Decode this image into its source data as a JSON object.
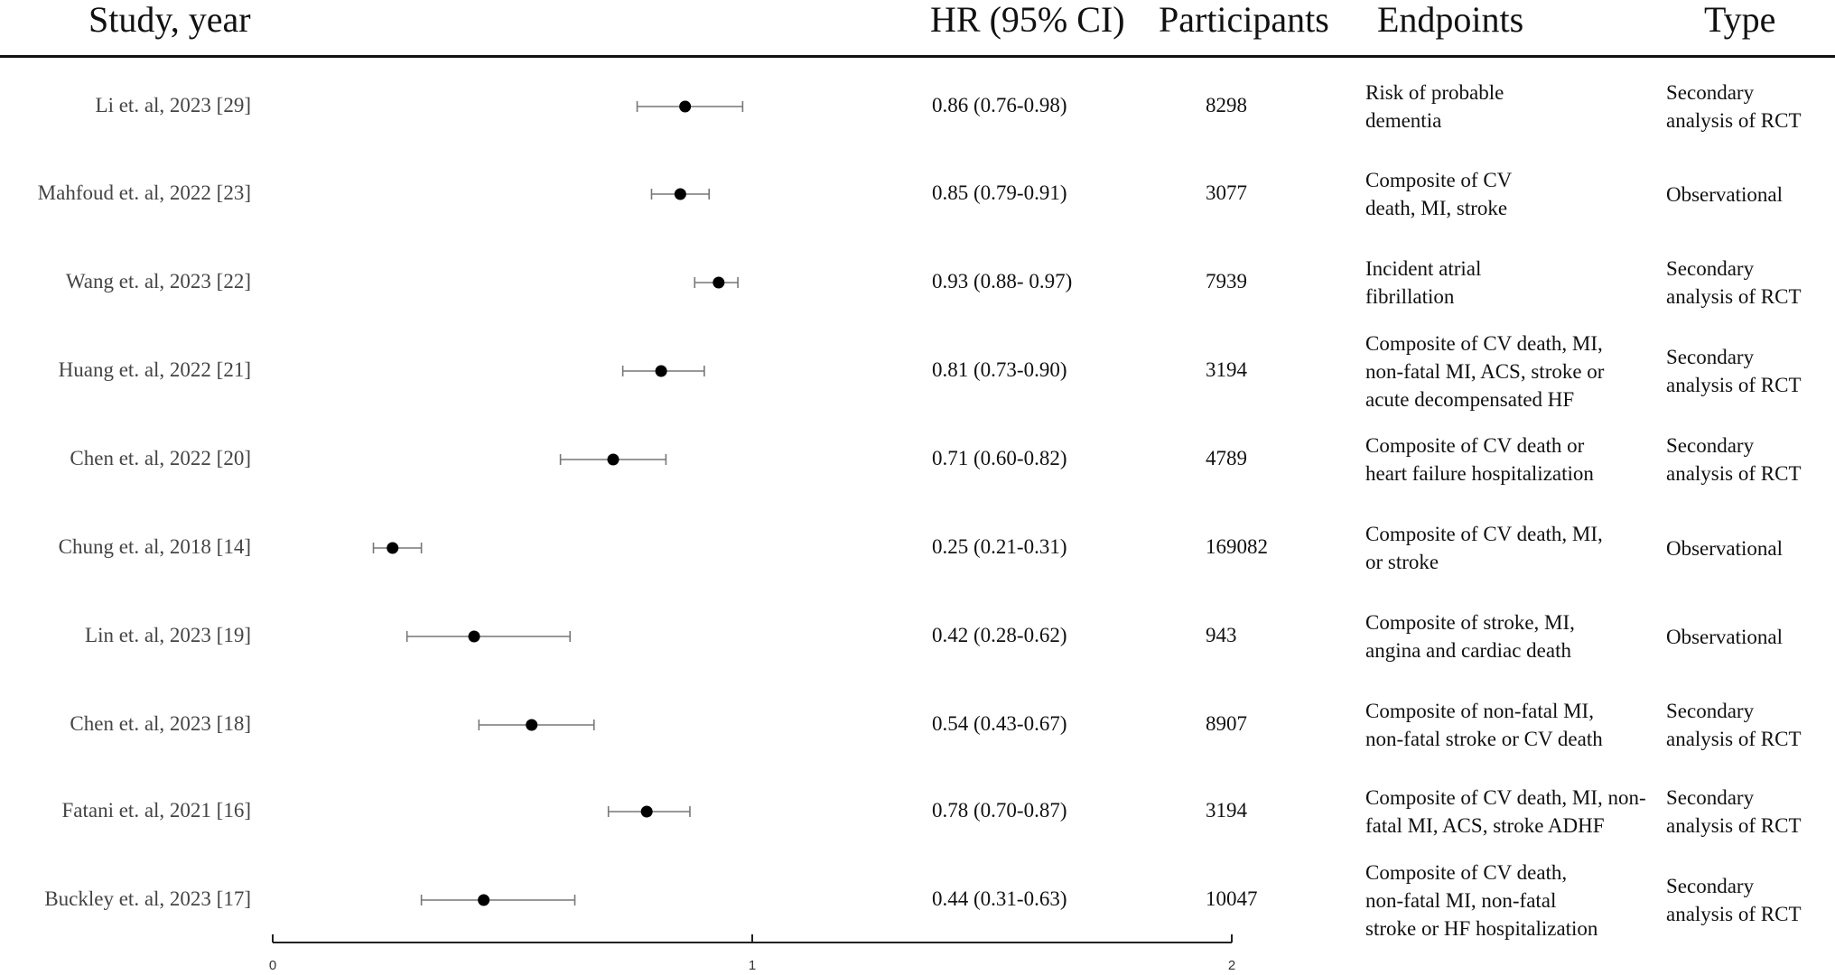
{
  "headers": {
    "study": "Study, year",
    "hr": "HR (95% CI)",
    "participants": "Participants",
    "endpoints": "Endpoints",
    "type": "Type"
  },
  "chart_data": {
    "type": "forest",
    "xlim": [
      0,
      2
    ],
    "xticks": [
      "0",
      "1",
      "2"
    ],
    "studies": [
      {
        "label": "Li et. al, 2023 [29]",
        "hr": 0.86,
        "lo": 0.76,
        "hi": 0.98,
        "hr_text": "0.86 (0.76-0.98)",
        "participants": "8298",
        "endpoint": [
          "Risk of probable",
          "dementia"
        ],
        "type": [
          "Secondary",
          "analysis of RCT"
        ]
      },
      {
        "label": "Mahfoud et. al, 2022 [23]",
        "hr": 0.85,
        "lo": 0.79,
        "hi": 0.91,
        "hr_text": "0.85 (0.79-0.91)",
        "participants": "3077",
        "endpoint": [
          "Composite of CV",
          "death, MI, stroke"
        ],
        "type": [
          "Observational"
        ]
      },
      {
        "label": "Wang et. al, 2023 [22]",
        "hr": 0.93,
        "lo": 0.88,
        "hi": 0.97,
        "hr_text": "0.93 (0.88- 0.97)",
        "participants": "7939",
        "endpoint": [
          "Incident atrial",
          "fibrillation"
        ],
        "type": [
          "Secondary",
          "analysis of RCT"
        ]
      },
      {
        "label": "Huang et. al, 2022 [21]",
        "hr": 0.81,
        "lo": 0.73,
        "hi": 0.9,
        "hr_text": "0.81 (0.73-0.90)",
        "participants": "3194",
        "endpoint": [
          "Composite of CV death, MI,",
          "non-fatal MI, ACS, stroke or",
          "acute decompensated HF"
        ],
        "type": [
          "Secondary",
          "analysis of RCT"
        ]
      },
      {
        "label": "Chen et. al, 2022 [20]",
        "hr": 0.71,
        "lo": 0.6,
        "hi": 0.82,
        "hr_text": "0.71 (0.60-0.82)",
        "participants": "4789",
        "endpoint": [
          "Composite of CV death or",
          "heart failure hospitalization"
        ],
        "type": [
          "Secondary",
          "analysis of RCT"
        ]
      },
      {
        "label": "Chung et. al, 2018 [14]",
        "hr": 0.25,
        "lo": 0.21,
        "hi": 0.31,
        "hr_text": "0.25 (0.21-0.31)",
        "participants": "169082",
        "endpoint": [
          "Composite of CV death, MI,",
          "or stroke"
        ],
        "type": [
          "Observational"
        ]
      },
      {
        "label": "Lin et. al, 2023 [19]",
        "hr": 0.42,
        "lo": 0.28,
        "hi": 0.62,
        "hr_text": "0.42 (0.28-0.62)",
        "participants": "943",
        "endpoint": [
          "Composite of stroke, MI,",
          "angina and cardiac death"
        ],
        "type": [
          "Observational"
        ]
      },
      {
        "label": "Chen et. al, 2023 [18]",
        "hr": 0.54,
        "lo": 0.43,
        "hi": 0.67,
        "hr_text": "0.54 (0.43-0.67)",
        "participants": "8907",
        "endpoint": [
          "Composite of non-fatal MI,",
          "non-fatal stroke or CV death"
        ],
        "type": [
          "Secondary",
          "analysis of RCT"
        ]
      },
      {
        "label": "Fatani et. al, 2021 [16]",
        "hr": 0.78,
        "lo": 0.7,
        "hi": 0.87,
        "hr_text": "0.78 (0.70-0.87)",
        "participants": "3194",
        "endpoint": [
          "Composite of CV death, MI, non-",
          "fatal MI, ACS, stroke ADHF"
        ],
        "type": [
          "Secondary",
          "analysis of RCT"
        ]
      },
      {
        "label": "Buckley et. al, 2023 [17]",
        "hr": 0.44,
        "lo": 0.31,
        "hi": 0.63,
        "hr_text": "0.44 (0.31-0.63)",
        "participants": "10047",
        "endpoint": [
          "Composite of CV death,",
          "non-fatal MI, non-fatal",
          "stroke or HF hospitalization"
        ],
        "type": [
          "Secondary",
          "analysis of RCT"
        ]
      }
    ]
  }
}
